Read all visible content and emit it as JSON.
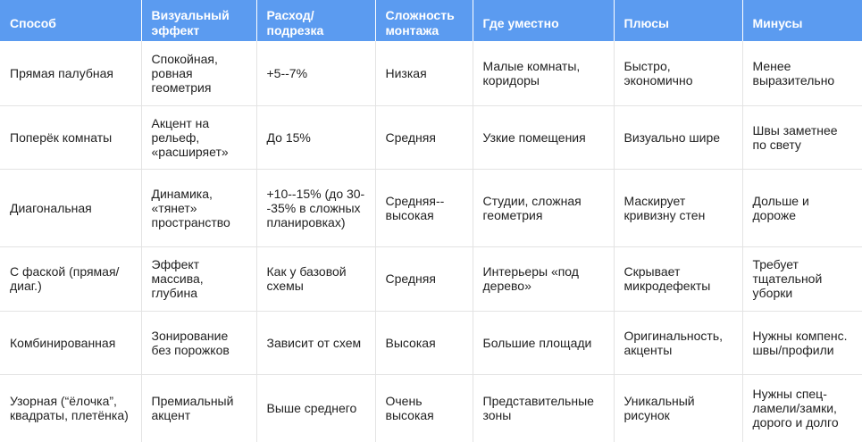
{
  "table": {
    "headers": [
      "Способ",
      "Визуальный эффект",
      "Расход/ подрезка",
      "Сложность монтажа",
      "Где уместно",
      "Плюсы",
      "Минусы"
    ],
    "rows": [
      [
        "Прямая палубная",
        "Спокойная, ровная геометрия",
        "+5--7%",
        "Низкая",
        "Малые комнаты, коридоры",
        "Быстро, экономично",
        "Менее выразительно"
      ],
      [
        "Поперёк комнаты",
        "Акцент на рельеф, «расширяет»",
        "До 15%",
        "Средняя",
        "Узкие помещения",
        "Визуально шире",
        "Швы заметнее по свету"
      ],
      [
        "Диагональная",
        "Динамика, «тянет» пространство",
        "+10--15% (до 30--35% в сложных планировках)",
        "Средняя--высокая",
        "Студии, сложная геометрия",
        "Маскирует кривизну стен",
        "Дольше и дороже"
      ],
      [
        "С фаской (прямая/диаг.)",
        "Эффект массива, глубина",
        "Как у базовой схемы",
        "Средняя",
        "Интерьеры «под дерево»",
        "Скрывает микродефекты",
        "Требует тщательной уборки"
      ],
      [
        "Комбинированная",
        "Зонирование без порожков",
        "Зависит от схем",
        "Высокая",
        "Большие площади",
        "Оригинальность, акценты",
        "Нужны компенс. швы/профили"
      ],
      [
        "Узорная (“ёлочка”, квадраты, плетёнка)",
        "Премиальный акцент",
        "Выше среднего",
        "Очень высокая",
        "Представительные зоны",
        "Уникальный рисунок",
        "Нужны спец-ламели/замки, дорого и долго"
      ]
    ]
  }
}
